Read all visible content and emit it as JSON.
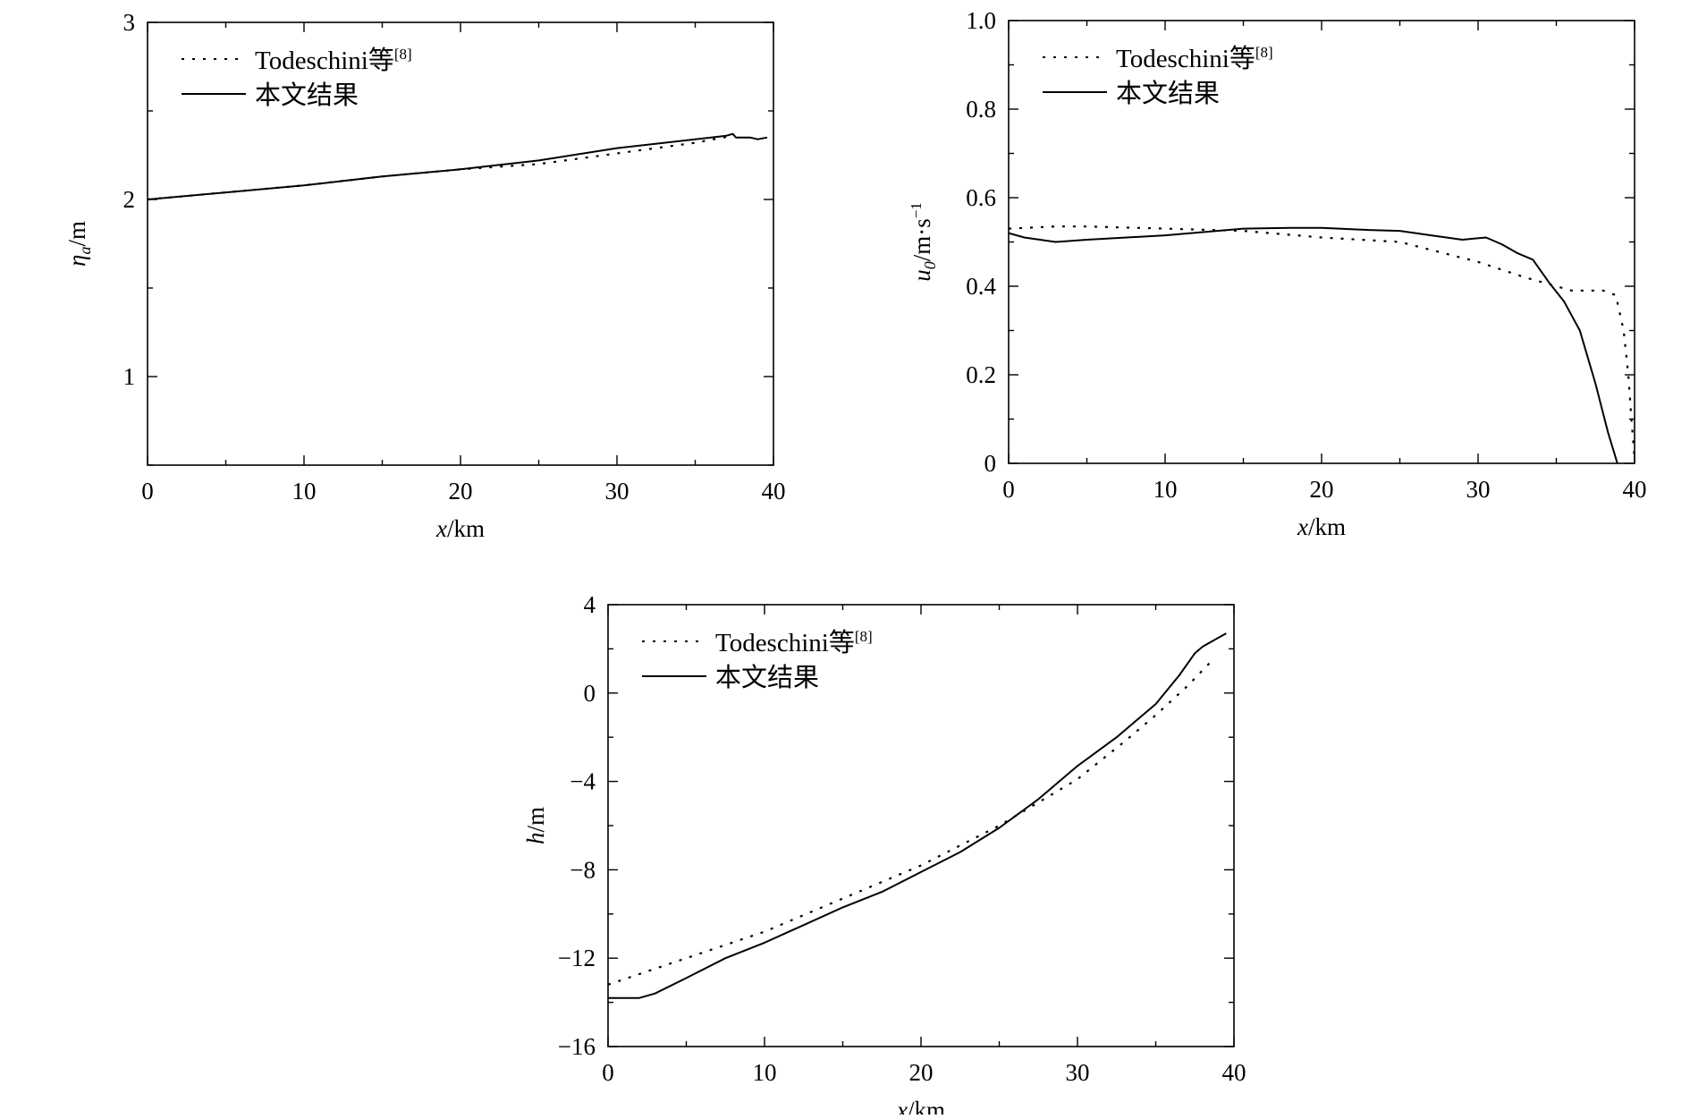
{
  "chart_data": [
    {
      "type": "line",
      "xlabel": {
        "var": "x",
        "unit": "/km"
      },
      "ylabel": {
        "var": "η",
        "sub": "a",
        "unit": "/m"
      },
      "xlim": [
        0,
        40
      ],
      "ylim": [
        0.5,
        3
      ],
      "xticks": [
        "0",
        "10",
        "20",
        "30",
        "40"
      ],
      "yticks": [
        "1",
        "2",
        "3"
      ],
      "legend": {
        "placement": "top-left",
        "ref": "[8]"
      },
      "series": [
        {
          "name": "Todeschini等",
          "style": "dotted",
          "x": [
            0,
            5,
            10,
            15,
            20,
            25,
            30,
            35,
            37.4
          ],
          "y": [
            2.0,
            2.04,
            2.08,
            2.13,
            2.17,
            2.2,
            2.26,
            2.32,
            2.36
          ]
        },
        {
          "name": "本文结果",
          "style": "solid",
          "x": [
            0,
            5,
            10,
            15,
            20,
            25,
            30,
            35,
            37,
            37.4,
            37.6,
            38,
            38.5,
            39,
            39.6
          ],
          "y": [
            2.0,
            2.04,
            2.08,
            2.13,
            2.17,
            2.22,
            2.29,
            2.34,
            2.36,
            2.37,
            2.35,
            2.35,
            2.35,
            2.34,
            2.35
          ]
        }
      ]
    },
    {
      "type": "line",
      "xlabel": {
        "var": "x",
        "unit": "/km"
      },
      "ylabel": {
        "var": "u",
        "sub": "0",
        "unit": "/m·s",
        "sup": "−1"
      },
      "xlim": [
        0,
        40
      ],
      "ylim": [
        0,
        1.0
      ],
      "xticks": [
        "0",
        "10",
        "20",
        "30",
        "40"
      ],
      "yticks": [
        "0",
        "0.2",
        "0.4",
        "0.6",
        "0.8",
        "1.0"
      ],
      "legend": {
        "placement": "top-left",
        "ref": "[8]"
      },
      "series": [
        {
          "name": "Todeschini等",
          "style": "dotted",
          "x": [
            0,
            3,
            5,
            10,
            15,
            20,
            25,
            30,
            33,
            35,
            36,
            38,
            38.8,
            39.3,
            39.6,
            39.8,
            40
          ],
          "y": [
            0.53,
            0.535,
            0.535,
            0.53,
            0.525,
            0.51,
            0.5,
            0.455,
            0.42,
            0.4,
            0.39,
            0.39,
            0.38,
            0.3,
            0.2,
            0.1,
            0.01
          ]
        },
        {
          "name": "本文结果",
          "style": "solid",
          "x": [
            0,
            1,
            2,
            3,
            5,
            10,
            15,
            18,
            20,
            23,
            25,
            27,
            29,
            30.5,
            31.5,
            32.5,
            33.5,
            34.5,
            35.5,
            36.5,
            37.5,
            38.3,
            38.9
          ],
          "y": [
            0.52,
            0.51,
            0.505,
            0.5,
            0.505,
            0.515,
            0.53,
            0.532,
            0.532,
            0.527,
            0.525,
            0.515,
            0.505,
            0.51,
            0.495,
            0.475,
            0.46,
            0.41,
            0.365,
            0.3,
            0.18,
            0.07,
            0.0
          ]
        }
      ]
    },
    {
      "type": "line",
      "xlabel": {
        "var": "x",
        "unit": "/km"
      },
      "ylabel": {
        "var": "h",
        "unit": "/m"
      },
      "xlim": [
        0,
        40
      ],
      "ylim": [
        -16,
        4
      ],
      "xticks": [
        "0",
        "10",
        "20",
        "30",
        "40"
      ],
      "yticks": [
        "4",
        "0",
        "−4",
        "−8",
        "−12",
        "−16"
      ],
      "ytick_values": [
        4,
        0,
        -4,
        -8,
        -12,
        -16
      ],
      "legend": {
        "placement": "top-left",
        "ref": "[8]"
      },
      "series": [
        {
          "name": "Todeschini等",
          "style": "dotted",
          "x": [
            0,
            5,
            10,
            15,
            20,
            25,
            30,
            33,
            35,
            37,
            38.5
          ],
          "y": [
            -13.2,
            -12.0,
            -10.8,
            -9.3,
            -7.8,
            -6.0,
            -3.9,
            -2.2,
            -1.0,
            0.3,
            1.4
          ]
        },
        {
          "name": "本文结果",
          "style": "solid",
          "x": [
            0,
            1,
            2,
            3,
            5,
            7.5,
            10,
            12.5,
            15,
            17.5,
            20,
            22.5,
            25,
            27.5,
            30,
            32.5,
            35,
            36.5,
            37.5,
            38,
            39,
            39.5
          ],
          "y": [
            -13.8,
            -13.8,
            -13.8,
            -13.6,
            -12.9,
            -12.0,
            -11.3,
            -10.5,
            -9.7,
            -9.0,
            -8.1,
            -7.2,
            -6.1,
            -4.8,
            -3.3,
            -2.0,
            -0.5,
            0.8,
            1.8,
            2.1,
            2.5,
            2.7
          ]
        }
      ]
    }
  ]
}
